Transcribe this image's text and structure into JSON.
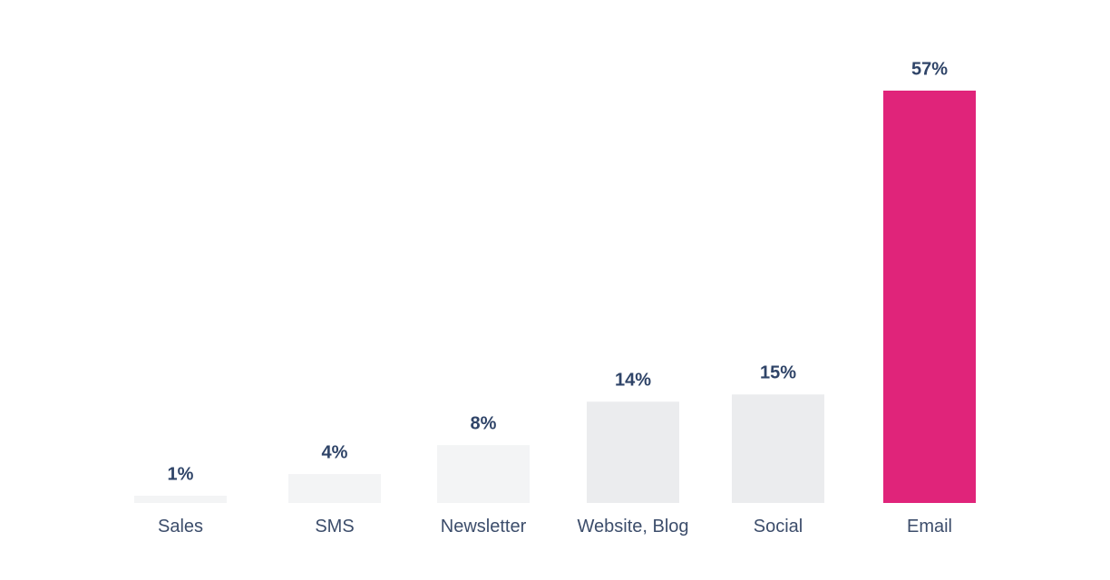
{
  "chart_data": {
    "type": "bar",
    "categories": [
      "Sales",
      "SMS",
      "Newsletter",
      "Website, Blog",
      "Social",
      "Email"
    ],
    "values": [
      1,
      4,
      8,
      14,
      15,
      57
    ],
    "value_labels": [
      "1%",
      "4%",
      "8%",
      "14%",
      "15%",
      "57%"
    ],
    "colors": [
      "#f3f4f5",
      "#f3f4f5",
      "#f3f4f5",
      "#ebecee",
      "#ebecee",
      "#e0247a"
    ]
  }
}
